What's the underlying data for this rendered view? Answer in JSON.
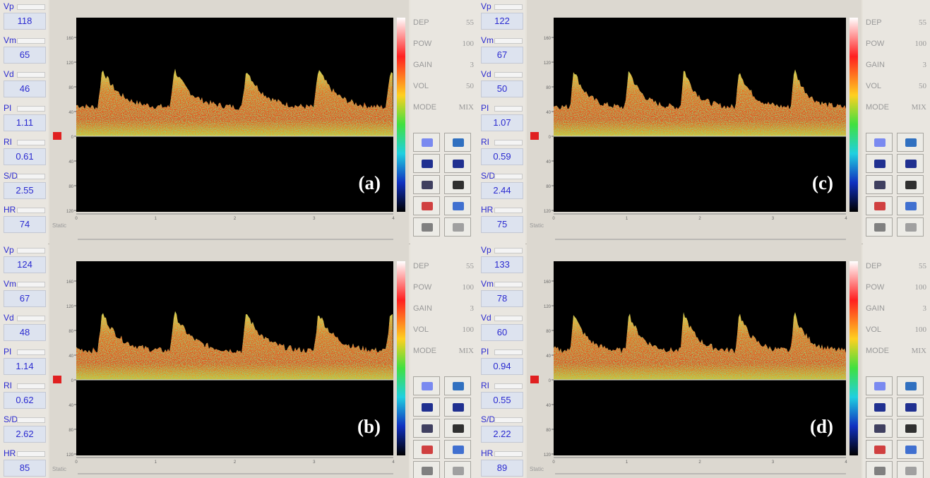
{
  "spectrum_axis": {
    "y_labels": [
      "160",
      "120",
      "80",
      "40",
      "0",
      "40",
      "80",
      "120"
    ],
    "x_labels": [
      "0",
      "1",
      "2",
      "3",
      "4"
    ],
    "mode_label": "Static"
  },
  "panels": [
    {
      "label": "(a)",
      "measurements": [
        {
          "label": "Vp",
          "value": 118
        },
        {
          "label": "Vm",
          "value": 65
        },
        {
          "label": "Vd",
          "value": 46
        },
        {
          "label": "PI",
          "value": 1.11
        },
        {
          "label": "RI",
          "value": 0.61
        },
        {
          "label": "S/D",
          "value": 2.55
        },
        {
          "label": "HR",
          "value": 74
        }
      ],
      "settings": [
        {
          "label": "DEP",
          "value": 55
        },
        {
          "label": "POW",
          "value": 100
        },
        {
          "label": "GAIN",
          "value": 3
        },
        {
          "label": "VOL",
          "value": 50
        },
        {
          "label": "MODE",
          "value": "MIX"
        }
      ]
    },
    {
      "label": "(c)",
      "measurements": [
        {
          "label": "Vp",
          "value": 122
        },
        {
          "label": "Vm",
          "value": 67
        },
        {
          "label": "Vd",
          "value": 50
        },
        {
          "label": "PI",
          "value": 1.07
        },
        {
          "label": "RI",
          "value": 0.59
        },
        {
          "label": "S/D",
          "value": 2.44
        },
        {
          "label": "HR",
          "value": 75
        }
      ],
      "settings": [
        {
          "label": "DEP",
          "value": 55
        },
        {
          "label": "POW",
          "value": 100
        },
        {
          "label": "GAIN",
          "value": 3
        },
        {
          "label": "VOL",
          "value": 50
        },
        {
          "label": "MODE",
          "value": "MIX"
        }
      ]
    },
    {
      "label": "(b)",
      "measurements": [
        {
          "label": "Vp",
          "value": 124
        },
        {
          "label": "Vm",
          "value": 67
        },
        {
          "label": "Vd",
          "value": 48
        },
        {
          "label": "PI",
          "value": 1.14
        },
        {
          "label": "RI",
          "value": 0.62
        },
        {
          "label": "S/D",
          "value": 2.62
        },
        {
          "label": "HR",
          "value": 85
        }
      ],
      "settings": [
        {
          "label": "DEP",
          "value": 55
        },
        {
          "label": "POW",
          "value": 100
        },
        {
          "label": "GAIN",
          "value": 3
        },
        {
          "label": "VOL",
          "value": 100
        },
        {
          "label": "MODE",
          "value": "MIX"
        }
      ]
    },
    {
      "label": "(d)",
      "measurements": [
        {
          "label": "Vp",
          "value": 133
        },
        {
          "label": "Vm",
          "value": 78
        },
        {
          "label": "Vd",
          "value": 60
        },
        {
          "label": "PI",
          "value": 0.94
        },
        {
          "label": "RI",
          "value": 0.55
        },
        {
          "label": "S/D",
          "value": 2.22
        },
        {
          "label": "HR",
          "value": 89
        }
      ],
      "settings": [
        {
          "label": "DEP",
          "value": 55
        },
        {
          "label": "POW",
          "value": 100
        },
        {
          "label": "GAIN",
          "value": 3
        },
        {
          "label": "VOL",
          "value": 100
        },
        {
          "label": "MODE",
          "value": "MIX"
        }
      ]
    }
  ]
}
